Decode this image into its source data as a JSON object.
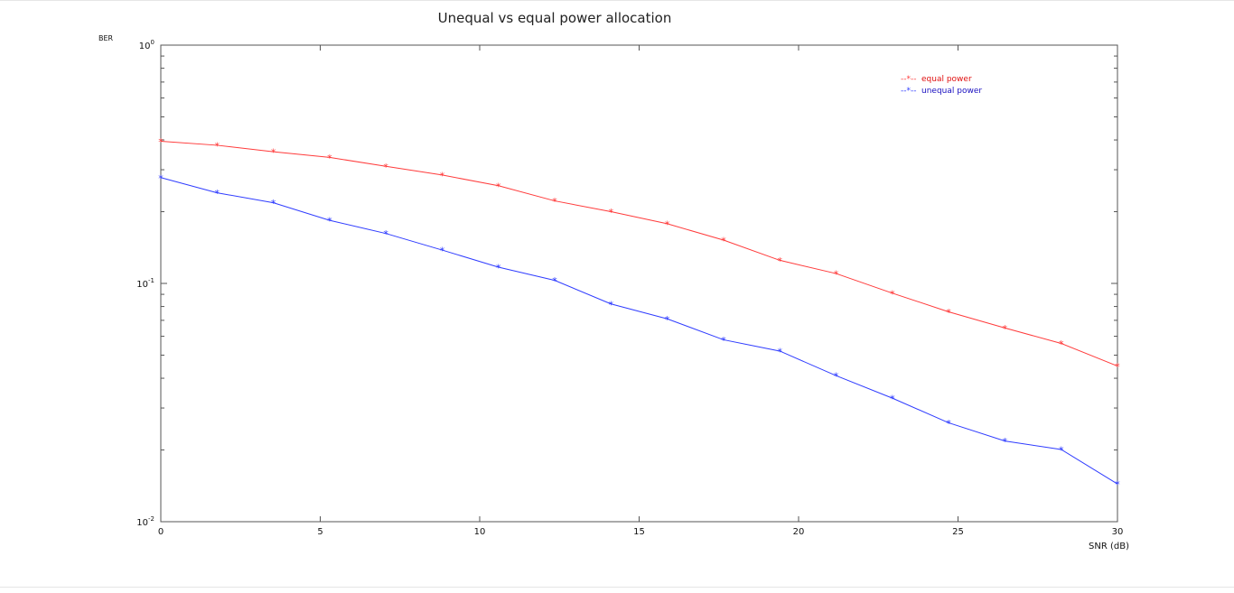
{
  "colors": {
    "equal": "#ff3b3b",
    "unequal": "#2f3cff",
    "equal_text": "#e01010",
    "unequal_text": "#1a10c0",
    "axis": "#555555"
  },
  "chart_data": {
    "type": "line",
    "title": "Unequal vs equal power allocation",
    "xlabel": "SNR (dB)",
    "ylabel": "BER",
    "xlim": [
      0,
      30
    ],
    "ylim": [
      0.01,
      1
    ],
    "yscale": "log",
    "xticks": [
      0,
      5,
      10,
      15,
      20,
      25,
      30
    ],
    "yticks": [
      {
        "value": 1,
        "base": "10",
        "exp": "0"
      },
      {
        "value": 0.1,
        "base": "10",
        "exp": "-1"
      },
      {
        "value": 0.01,
        "base": "10",
        "exp": "-2"
      }
    ],
    "grid": false,
    "legend_position": "top-right",
    "x": [
      0,
      1.765,
      3.529,
      5.294,
      7.059,
      8.824,
      10.588,
      12.353,
      14.118,
      15.882,
      17.647,
      19.412,
      21.176,
      22.941,
      24.706,
      26.471,
      28.235,
      30
    ],
    "series": [
      {
        "name": "equal power",
        "legend_marker": "--*--",
        "color": "#ff3b3b",
        "marker": "*",
        "values": [
          0.395,
          0.38,
          0.357,
          0.338,
          0.31,
          0.285,
          0.257,
          0.222,
          0.2,
          0.178,
          0.152,
          0.125,
          0.11,
          0.091,
          0.076,
          0.065,
          0.056,
          0.045
        ]
      },
      {
        "name": "unequal power",
        "legend_marker": "--*--",
        "color": "#2f3cff",
        "marker": "*",
        "values": [
          0.278,
          0.24,
          0.218,
          0.184,
          0.162,
          0.138,
          0.117,
          0.103,
          0.082,
          0.071,
          0.058,
          0.052,
          0.041,
          0.033,
          0.026,
          0.0218,
          0.0201,
          0.0144
        ]
      }
    ]
  }
}
